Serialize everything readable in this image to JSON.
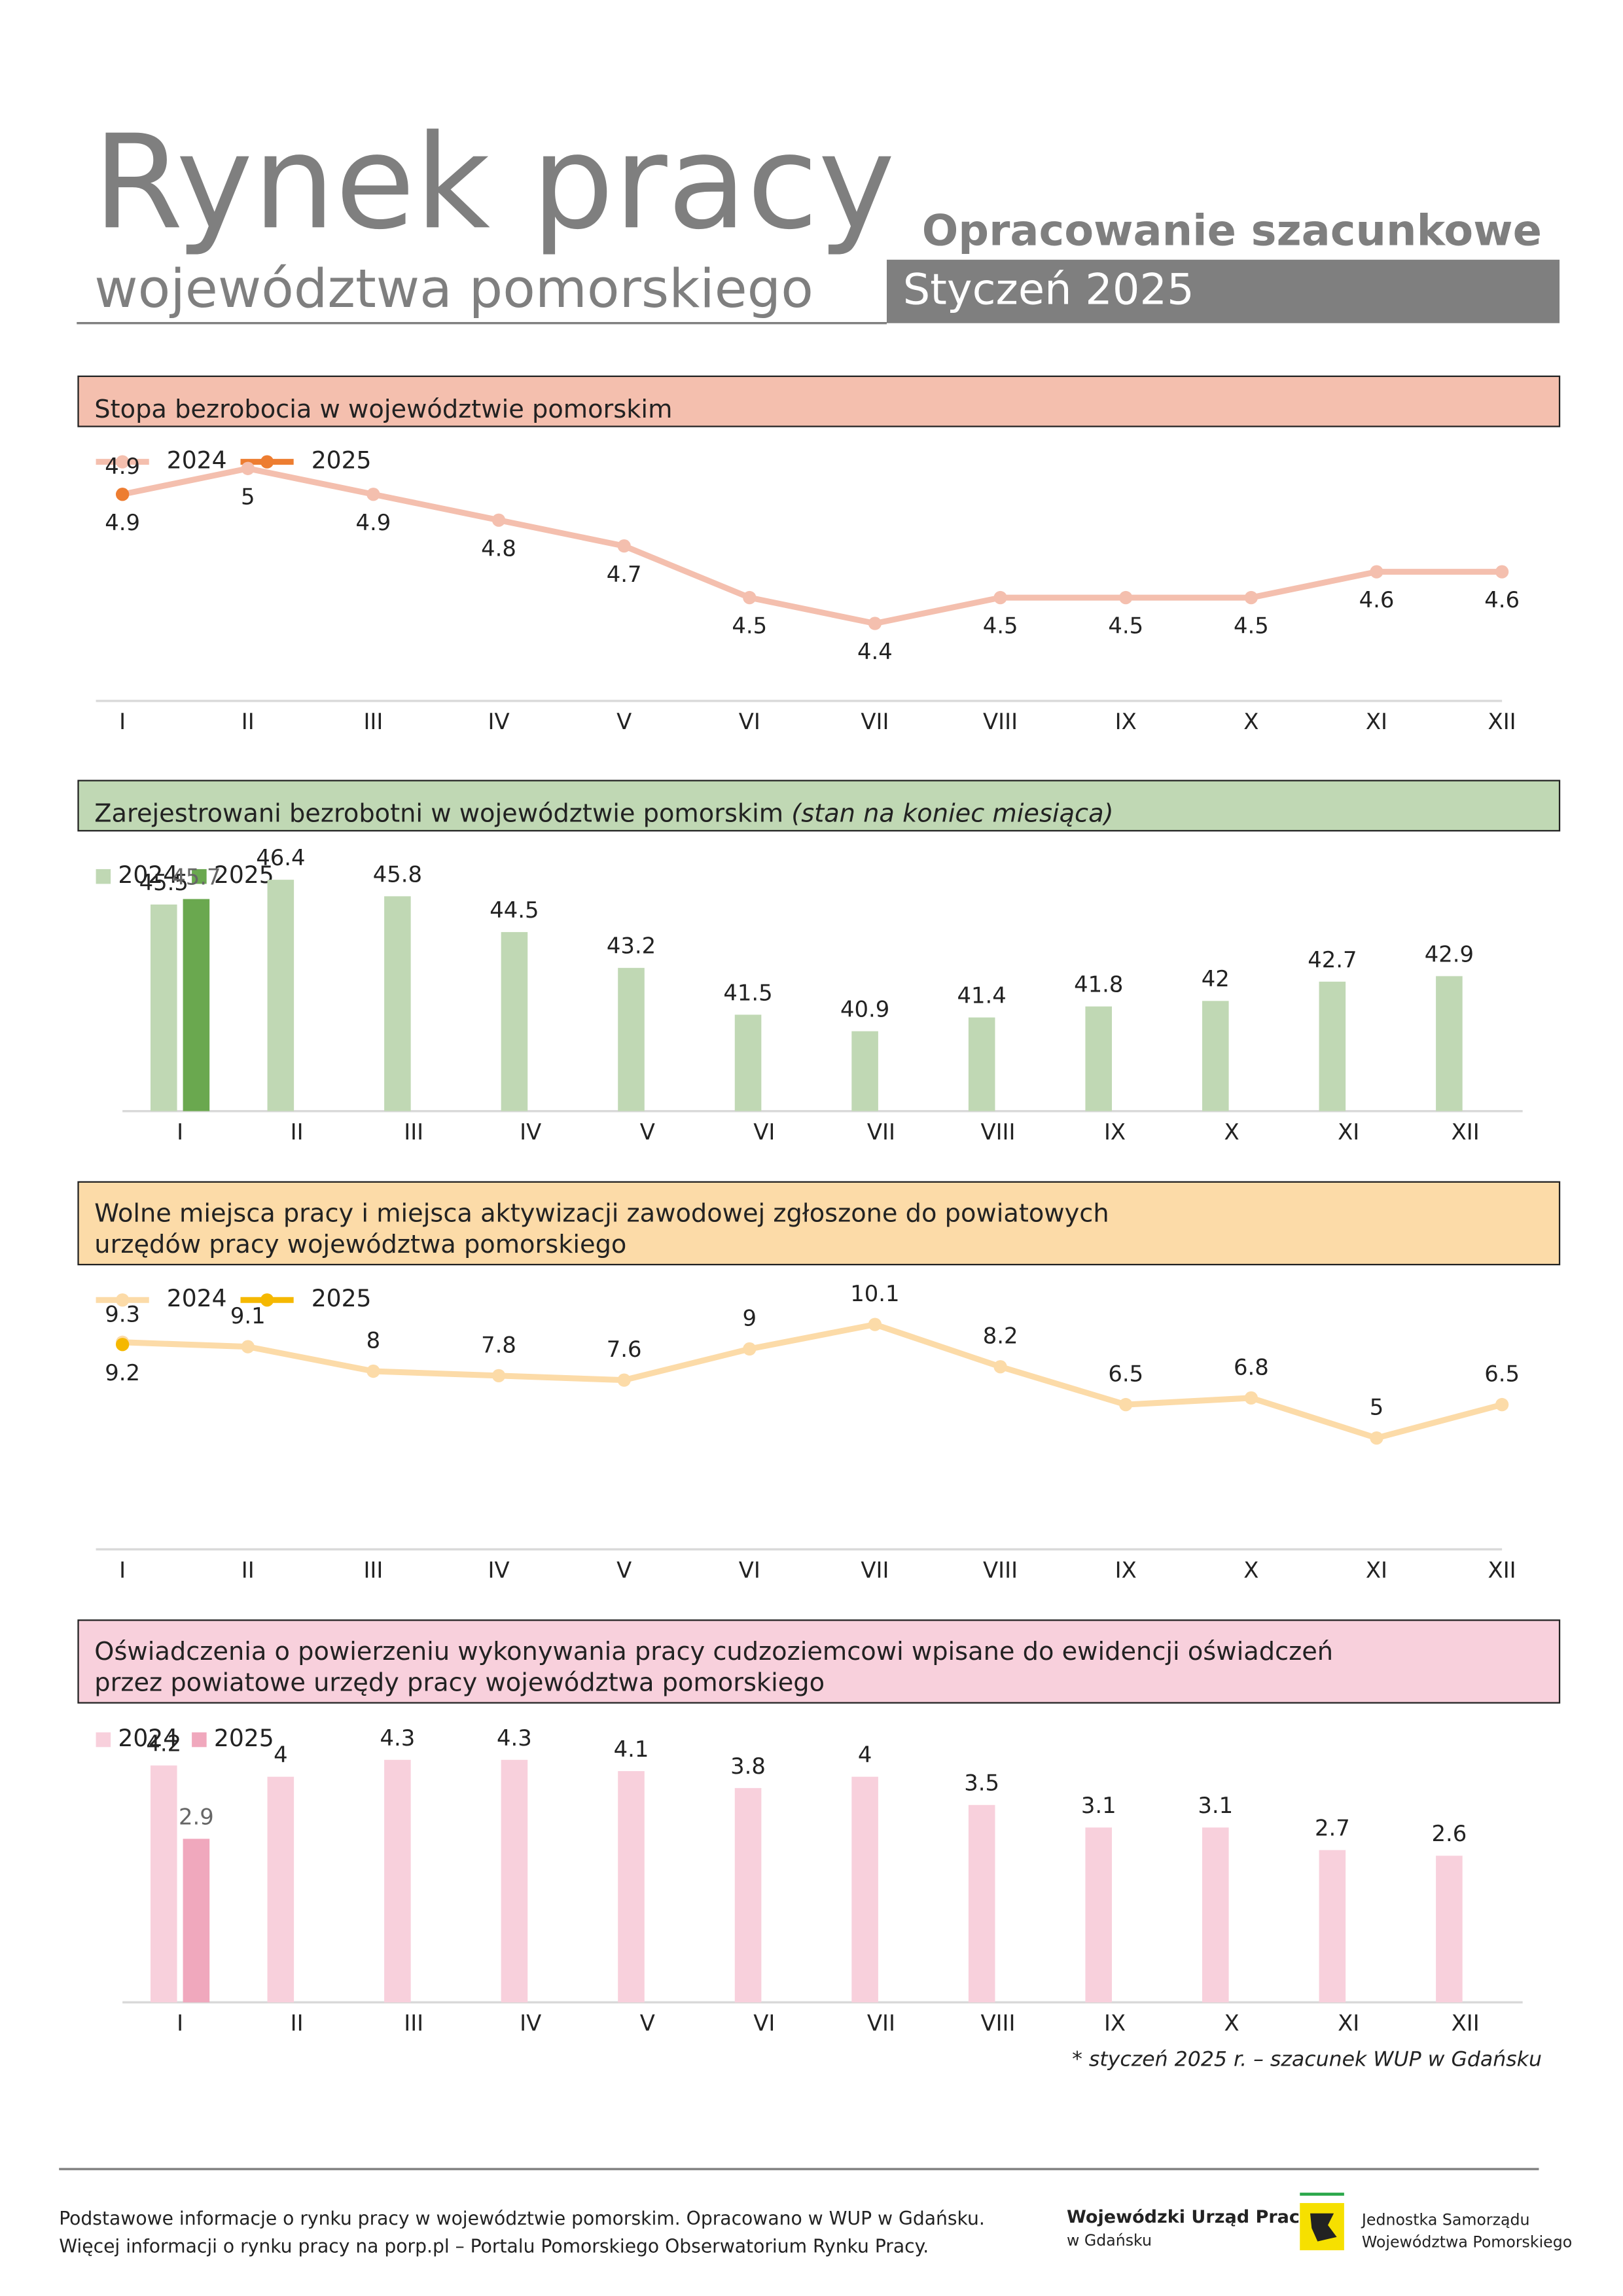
{
  "header": {
    "title": "Rynek pracy",
    "subtitle": "województwa pomorskiego",
    "label": "Opracowanie szacunkowe",
    "period": "Styczeń 2025"
  },
  "chart_data": [
    {
      "type": "line",
      "title": [
        "Stopa bezrobocia w województwie pomorskim"
      ],
      "categories": [
        "I",
        "II",
        "III",
        "IV",
        "V",
        "VI",
        "VII",
        "VIII",
        "IX",
        "X",
        "XI",
        "XII"
      ],
      "series": [
        {
          "name": "2024",
          "color": "#f4bfae",
          "values": [
            4.9,
            5.0,
            4.9,
            4.8,
            4.7,
            4.5,
            4.4,
            4.5,
            4.5,
            4.5,
            4.6,
            4.6
          ]
        },
        {
          "name": "2025",
          "color": "#ed7d31",
          "values": [
            4.9,
            null,
            null,
            null,
            null,
            null,
            null,
            null,
            null,
            null,
            null,
            null
          ]
        }
      ],
      "ylim": [
        4.1,
        5.1
      ]
    },
    {
      "type": "bar",
      "title": [
        "Zarejestrowani bezrobotni w województwie pomorskim"
      ],
      "subtitle": "(stan na koniec miesiąca)",
      "categories": [
        "I",
        "II",
        "III",
        "IV",
        "V",
        "VI",
        "VII",
        "VIII",
        "IX",
        "X",
        "XI",
        "XII"
      ],
      "series": [
        {
          "name": "2024",
          "color": "#c0d8b4",
          "values": [
            45.5,
            46.4,
            45.8,
            44.5,
            43.2,
            41.5,
            40.9,
            41.4,
            41.8,
            42,
            42.7,
            42.9
          ]
        },
        {
          "name": "2025",
          "color": "#6aa84f",
          "values": [
            45.7,
            null,
            null,
            null,
            null,
            null,
            null,
            null,
            null,
            null,
            null,
            null
          ]
        }
      ],
      "ylim": [
        38,
        47
      ]
    },
    {
      "type": "line",
      "title": [
        "Wolne miejsca pracy i miejsca aktywizacji zawodowej zgłoszone do powiatowych",
        "urzędów pracy województwa pomorskiego"
      ],
      "categories": [
        "I",
        "II",
        "III",
        "IV",
        "V",
        "VI",
        "VII",
        "VIII",
        "IX",
        "X",
        "XI",
        "XII"
      ],
      "series": [
        {
          "name": "2024",
          "color": "#fcdba8",
          "values": [
            9.3,
            9.1,
            8.0,
            7.8,
            7.6,
            9.0,
            10.1,
            8.2,
            6.5,
            6.8,
            5.0,
            6.5
          ]
        },
        {
          "name": "2025",
          "color": "#f5b800",
          "values": [
            9.2,
            null,
            null,
            null,
            null,
            null,
            null,
            null,
            null,
            null,
            null,
            null
          ]
        }
      ],
      "ylim": [
        0,
        11
      ]
    },
    {
      "type": "bar",
      "title": [
        "Oświadczenia o powierzeniu wykonywania pracy cudzoziemcowi wpisane do ewidencji oświadczeń",
        "przez powiatowe urzędy pracy województwa pomorskiego"
      ],
      "categories": [
        "I",
        "II",
        "III",
        "IV",
        "V",
        "VI",
        "VII",
        "VIII",
        "IX",
        "X",
        "XI",
        "XII"
      ],
      "series": [
        {
          "name": "2024",
          "color": "#f8d0dc",
          "values": [
            4.2,
            4.0,
            4.3,
            4.3,
            4.1,
            3.8,
            4.0,
            3.5,
            3.1,
            3.1,
            2.7,
            2.6
          ]
        },
        {
          "name": "2025",
          "color": "#f0a8bd",
          "values": [
            2.9,
            null,
            null,
            null,
            null,
            null,
            null,
            null,
            null,
            null,
            null,
            null
          ]
        }
      ],
      "ylim": [
        0,
        4.5
      ]
    }
  ],
  "footnote": "* styczeń 2025 r. – szacunek WUP w Gdańsku",
  "footer": {
    "lines": [
      "Podstawowe informacje o rynku pracy w województwie pomorskim. Opracowano w WUP w Gdańsku.",
      "Więcej informacji o rynku pracy na porp.pl – Portalu Pomorskiego Obserwatorium Rynku Pracy."
    ],
    "logo1": [
      "Wojewódzki Urząd Pracy",
      "w Gdańsku"
    ],
    "logo2": [
      "Jednostka Samorządu",
      "Województwa Pomorskiego"
    ]
  }
}
